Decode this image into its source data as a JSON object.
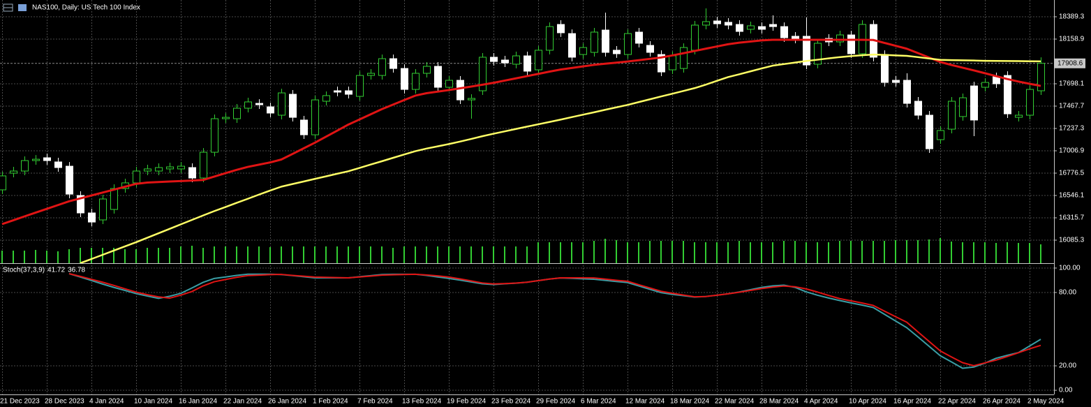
{
  "chart_data": [
    {
      "type": "candlestick",
      "title": "NAS100, Daily:  US Tech 100 Index",
      "categories": [
        "21 Dec 2023",
        null,
        null,
        null,
        "28 Dec 2023",
        null,
        null,
        null,
        "4 Jan 2024",
        null,
        null,
        null,
        "10 Jan 2024",
        null,
        null,
        null,
        "16 Jan 2024",
        null,
        null,
        null,
        "22 Jan 2024",
        null,
        null,
        null,
        "26 Jan 2024",
        null,
        null,
        null,
        "1 Feb 2024",
        null,
        null,
        null,
        "7 Feb 2024",
        null,
        null,
        null,
        "13 Feb 2024",
        null,
        null,
        null,
        "19 Feb 2024",
        null,
        null,
        null,
        "23 Feb 2024",
        null,
        null,
        null,
        "29 Feb 2024",
        null,
        null,
        null,
        "6 Mar 2024",
        null,
        null,
        null,
        "12 Mar 2024",
        null,
        null,
        null,
        "18 Mar 2024",
        null,
        null,
        null,
        "22 Mar 2024",
        null,
        null,
        null,
        "28 Mar 2024",
        null,
        null,
        null,
        "4 Apr 2024",
        null,
        null,
        null,
        "10 Apr 2024",
        null,
        null,
        null,
        "16 Apr 2024",
        null,
        null,
        null,
        "22 Apr 2024",
        null,
        null,
        null,
        "26 Apr 2024",
        null,
        null,
        null,
        "2 May 2024",
        null
      ],
      "open": [
        16604,
        16776,
        16798,
        16906,
        16935,
        16892,
        16848,
        16546,
        16366,
        16294,
        16402,
        16618,
        16676,
        16798,
        16798,
        16820,
        16820,
        16834,
        16726,
        16992,
        17338,
        17338,
        17446,
        17496,
        17460,
        17374,
        17590,
        17324,
        17172,
        17518,
        17626,
        17626,
        17568,
        17784,
        17784,
        17957,
        17856,
        17640,
        17806,
        17878,
        17662,
        17734,
        17532,
        17626,
        17972,
        17943,
        17900,
        17986,
        17842,
        18044,
        18310,
        18216,
        18000,
        18022,
        18252,
        18044,
        18000,
        18231,
        18094,
        18000,
        17842,
        17856,
        18044,
        18303,
        18346,
        18332,
        18310,
        18260,
        18288,
        18310,
        18288,
        18188,
        18188,
        17900,
        18166,
        18130,
        18202,
        18008,
        18310,
        18000,
        17734,
        17734,
        17518,
        17374,
        17122,
        17230,
        17360,
        17676,
        17662,
        17770,
        17784,
        17352,
        17374,
        17626
      ],
      "high": [
        16791,
        16841,
        16949,
        16963,
        16978,
        16935,
        16891,
        16589,
        16409,
        16553,
        16661,
        16719,
        16841,
        16863,
        16877,
        16884,
        16891,
        16877,
        17035,
        17381,
        17395,
        17489,
        17554,
        17539,
        17503,
        17647,
        17633,
        17367,
        17575,
        17619,
        17669,
        17669,
        17827,
        17849,
        18000,
        18000,
        17899,
        17849,
        17921,
        17921,
        17777,
        17777,
        17590,
        18015,
        18015,
        17986,
        18029,
        18029,
        18087,
        18331,
        18353,
        18259,
        18115,
        18274,
        18432,
        18087,
        18259,
        18274,
        18137,
        18043,
        18029,
        18115,
        18346,
        18476,
        18389,
        18375,
        18353,
        18339,
        18331,
        18404,
        18331,
        18231,
        18382,
        18159,
        18209,
        18245,
        18245,
        18353,
        18353,
        18043,
        17777,
        17806,
        17561,
        17417,
        17259,
        17561,
        17597,
        17719,
        17755,
        17813,
        17827,
        17417,
        17683,
        17971
      ],
      "low": [
        16561,
        16733,
        16755,
        16863,
        16863,
        16791,
        16517,
        16323,
        16229,
        16251,
        16359,
        16575,
        16633,
        16755,
        16755,
        16777,
        16777,
        16683,
        16683,
        16949,
        17295,
        17295,
        17403,
        17439,
        17353,
        17331,
        17309,
        17129,
        17129,
        17475,
        17569,
        17547,
        17525,
        17741,
        17741,
        17813,
        17597,
        17597,
        17763,
        17619,
        17619,
        17489,
        17338,
        17583,
        17885,
        17871,
        17857,
        17785,
        17799,
        18001,
        18181,
        17929,
        17957,
        17979,
        17979,
        17965,
        17957,
        18073,
        17979,
        17777,
        17799,
        17813,
        18001,
        18260,
        18274,
        18260,
        18195,
        18217,
        18217,
        18245,
        18130,
        18116,
        17849,
        17857,
        18087,
        18087,
        17965,
        17965,
        17929,
        17669,
        17669,
        17453,
        17331,
        16985,
        17079,
        17187,
        17317,
        17158,
        17619,
        17655,
        17345,
        17309,
        17331,
        17583
      ],
      "close": [
        16748,
        16798,
        16906,
        16920,
        16906,
        16834,
        16560,
        16366,
        16272,
        16510,
        16618,
        16676,
        16798,
        16820,
        16834,
        16841,
        16848,
        16726,
        16992,
        17338,
        17352,
        17446,
        17511,
        17482,
        17396,
        17604,
        17352,
        17172,
        17532,
        17576,
        17612,
        17590,
        17784,
        17806,
        17957,
        17856,
        17640,
        17806,
        17878,
        17662,
        17734,
        17532,
        17547,
        17972,
        17928,
        17914,
        17986,
        17828,
        18044,
        18288,
        18224,
        17972,
        18072,
        18231,
        18022,
        18008,
        18216,
        18116,
        18022,
        17820,
        17986,
        18072,
        18303,
        18339,
        18317,
        18303,
        18238,
        18296,
        18260,
        18288,
        18173,
        18159,
        17892,
        18116,
        18130,
        18202,
        18008,
        18310,
        17972,
        17712,
        17712,
        17496,
        17374,
        17028,
        17216,
        17518,
        17554,
        17324,
        17712,
        17698,
        17388,
        17374,
        17640,
        17909
      ],
      "bull_color": "#32cd32",
      "bear_color": "#ffffff",
      "lines": [
        {
          "color": "#e01414",
          "values": [
            16251,
            16290,
            16330,
            16369,
            16408,
            16447,
            16486,
            16516,
            16546,
            16576,
            16606,
            16636,
            16666,
            16679,
            16685,
            16690,
            16695,
            16700,
            16706,
            16741,
            16776,
            16810,
            16841,
            16864,
            16887,
            16917,
            16974,
            17032,
            17090,
            17152,
            17214,
            17277,
            17330,
            17383,
            17436,
            17483,
            17530,
            17576,
            17601,
            17617,
            17633,
            17651,
            17669,
            17688,
            17708,
            17731,
            17754,
            17777,
            17800,
            17823,
            17845,
            17861,
            17877,
            17893,
            17905,
            17916,
            17928,
            17941,
            17955,
            17969,
            17990,
            18013,
            18036,
            18060,
            18083,
            18106,
            18122,
            18134,
            18145,
            18152,
            18152,
            18152,
            18152,
            18152,
            18152,
            18152,
            18152,
            18152,
            18150,
            18120,
            18090,
            18060,
            18015,
            17969,
            17923,
            17892,
            17864,
            17836,
            17807,
            17777,
            17747,
            17721,
            17698,
            17676
          ]
        },
        {
          "color": "#ffff66",
          "values": [
            null,
            null,
            null,
            null,
            null,
            null,
            null,
            15848,
            15891,
            15934,
            15978,
            16021,
            16064,
            16110,
            16156,
            16202,
            16248,
            16294,
            16340,
            16385,
            16427,
            16470,
            16512,
            16555,
            16597,
            16637,
            16664,
            16690,
            16717,
            16743,
            16770,
            16796,
            16830,
            16865,
            16899,
            16934,
            16969,
            17003,
            17030,
            17053,
            17076,
            17102,
            17129,
            17157,
            17183,
            17207,
            17232,
            17256,
            17280,
            17304,
            17328,
            17354,
            17379,
            17404,
            17430,
            17455,
            17480,
            17509,
            17538,
            17567,
            17595,
            17624,
            17653,
            17689,
            17728,
            17767,
            17796,
            17826,
            17856,
            17885,
            17901,
            17917,
            17933,
            17946,
            17960,
            17973,
            17983,
            17992,
            18000,
            17996,
            17991,
            17986,
            17973,
            17959,
            17945,
            17942,
            17940,
            17938,
            17935,
            17934,
            17933,
            17932,
            17930,
            17929
          ]
        }
      ],
      "volume": {
        "color": "#32cd32",
        "values": [
          18,
          18,
          18,
          19,
          18,
          17,
          20,
          22,
          22,
          22,
          22,
          20,
          20,
          22,
          22,
          22,
          24,
          25,
          22,
          24,
          24,
          24,
          24,
          24,
          23,
          24,
          24,
          24,
          24,
          24,
          24,
          24,
          24,
          24,
          24,
          22,
          24,
          24,
          24,
          24,
          24,
          24,
          24,
          24,
          24,
          24,
          24,
          24,
          30,
          30,
          30,
          30,
          30,
          32,
          35,
          33,
          30,
          30,
          32,
          32,
          32,
          32,
          30,
          30,
          30,
          30,
          32,
          30,
          30,
          30,
          32,
          32,
          30,
          30,
          30,
          32,
          32,
          32,
          32,
          32,
          33,
          33,
          33,
          34,
          36,
          31,
          30,
          30,
          30,
          29,
          30,
          29,
          29,
          27
        ]
      },
      "ylim": [
        15847.7,
        18562.1
      ],
      "yticks": [
        18389.3,
        18158.9,
        17698.1,
        17467.7,
        17237.3,
        17006.9,
        16776.5,
        16546.1,
        16315.7,
        16085.3
      ],
      "last_price": 17908.6,
      "grid": true
    },
    {
      "type": "line",
      "title": "Stoch(37,3,9)",
      "series": [
        {
          "color": "#3a9ea5",
          "values": [
            null,
            null,
            null,
            null,
            null,
            null,
            95.4,
            92.7,
            89.8,
            86.9,
            84.2,
            81.7,
            79.1,
            77.1,
            75.2,
            76.9,
            79.3,
            83.7,
            88.3,
            91.5,
            92.7,
            94,
            95,
            95,
            95,
            94.7,
            93.8,
            92.9,
            92,
            92,
            92,
            92,
            92.9,
            93.8,
            94.7,
            94.9,
            94.9,
            94.9,
            94,
            92.7,
            91.5,
            90.1,
            88.6,
            87.1,
            86.5,
            87.1,
            87.6,
            88.4,
            89.7,
            91,
            91.9,
            91.6,
            91.2,
            90.8,
            89.9,
            89,
            88.1,
            85.4,
            82.6,
            79.9,
            78.5,
            77.4,
            76.3,
            76.7,
            77.8,
            78.9,
            80.4,
            82.3,
            84.1,
            85.4,
            86,
            84.2,
            80.5,
            77.8,
            75.5,
            73.4,
            71.5,
            69.7,
            67.7,
            62.2,
            56.7,
            51.2,
            43.7,
            36,
            28.3,
            23.2,
            18,
            19,
            22.2,
            26.2,
            28.6,
            30.8,
            36.2,
            41.72
          ]
        },
        {
          "color": "#e01414",
          "values": [
            null,
            null,
            null,
            null,
            null,
            null,
            95.4,
            93.2,
            90.8,
            88.4,
            85.8,
            83,
            80.3,
            78.2,
            76.4,
            75.4,
            77.8,
            80.8,
            85.4,
            88.8,
            90.6,
            92.4,
            93.8,
            94.2,
            94.6,
            94.8,
            94,
            93.3,
            92.6,
            92.4,
            92.2,
            92,
            92.7,
            93.4,
            94.2,
            94.5,
            94.7,
            94.9,
            94.3,
            93.6,
            92.6,
            91.1,
            89.5,
            87.8,
            87,
            87.3,
            87.7,
            88.4,
            89.7,
            91,
            92,
            92,
            92,
            91.9,
            91,
            90,
            89.2,
            86.4,
            83.7,
            81,
            79.4,
            77.9,
            76.5,
            76.7,
            77.8,
            78.9,
            80.2,
            81.7,
            83.2,
            84.4,
            85.3,
            84.7,
            82.9,
            80.4,
            77.6,
            75,
            73.2,
            71.4,
            69.4,
            64.8,
            60.2,
            55.7,
            47.8,
            40,
            32.2,
            27.3,
            22.6,
            20.1,
            22.4,
            24.7,
            27.6,
            30.7,
            33.9,
            36.78
          ]
        }
      ],
      "ylim": [
        -3.4,
        103.4
      ],
      "yticks": [
        {
          "value": 100,
          "label": "100.00"
        },
        {
          "value": 80,
          "label": "80.00"
        },
        {
          "value": 20,
          "label": "20.00"
        },
        {
          "value": 0,
          "label": "0.00"
        }
      ],
      "grid": true
    }
  ]
}
